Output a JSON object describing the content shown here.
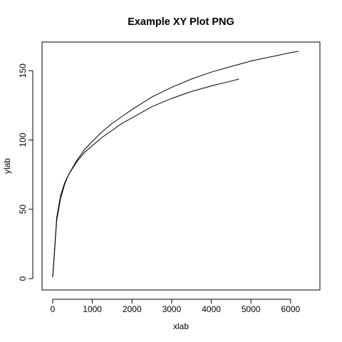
{
  "chart_data": {
    "type": "line",
    "title": "Example XY Plot PNG",
    "xlabel": "xlab",
    "ylabel": "ylab",
    "xlim": [
      0,
      6200
    ],
    "ylim": [
      0,
      164
    ],
    "x_ticks": [
      0,
      1000,
      2000,
      3000,
      4000,
      5000,
      6000
    ],
    "y_ticks": [
      0,
      50,
      100,
      150
    ],
    "grid": false,
    "legend": "none",
    "line_color": "#000000",
    "series": [
      {
        "x": [
          0,
          100,
          200,
          300,
          400,
          600,
          800,
          1000,
          1250,
          1500,
          1750,
          2000,
          2500,
          3000,
          3500,
          4000,
          4500,
          5000,
          5500,
          6000,
          6200
        ],
        "y": [
          1,
          42,
          58,
          68,
          75,
          85,
          93,
          99,
          106,
          112,
          117,
          122,
          131,
          138,
          144,
          149,
          153,
          157,
          160,
          163,
          164
        ]
      },
      {
        "x": [
          0,
          100,
          200,
          300,
          400,
          600,
          800,
          1000,
          1250,
          1500,
          1750,
          2000,
          2500,
          3000,
          3500,
          4000,
          4500,
          4700
        ],
        "y": [
          1,
          44,
          60,
          69,
          75,
          84,
          91,
          96,
          102,
          107,
          112,
          116,
          124,
          130,
          135,
          139,
          142.5,
          144
        ]
      }
    ]
  }
}
